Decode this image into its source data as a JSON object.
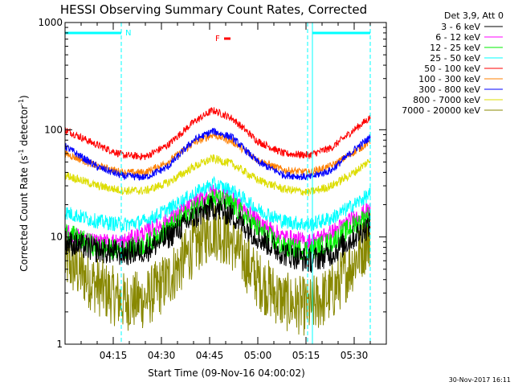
{
  "chart_data": {
    "type": "line",
    "title": "HESSI Observing Summary Count Rates, Corrected",
    "xlabel": "Start Time (09-Nov-16 04:00:02)",
    "ylabel_main": "Corrected Count Rate (s",
    "ylabel_sup1": "-1",
    "ylabel_mid": " detector",
    "ylabel_sup2": "-1",
    "ylabel_end": ")",
    "y_scale": "log",
    "ylim": [
      1,
      1000
    ],
    "xlim_minutes": [
      0,
      100
    ],
    "x_ticks": [
      {
        "minute": 15,
        "label": "04:15"
      },
      {
        "minute": 30,
        "label": "04:30"
      },
      {
        "minute": 45,
        "label": "04:45"
      },
      {
        "minute": 60,
        "label": "05:00"
      },
      {
        "minute": 75,
        "label": "05:15"
      },
      {
        "minute": 90,
        "label": "05:30"
      }
    ],
    "y_ticks": [
      {
        "value": 1,
        "label": "1"
      },
      {
        "value": 10,
        "label": "10"
      },
      {
        "value": 100,
        "label": "100"
      },
      {
        "value": 1000,
        "label": "1000"
      }
    ],
    "legend_header": "Det 3,9, Att 0",
    "series": [
      {
        "name": "3 - 6 keV",
        "color": "#000000",
        "x": [
          0,
          10,
          18,
          25,
          32,
          40,
          46,
          52,
          60,
          68,
          76,
          83,
          90,
          95
        ],
        "y": [
          9,
          7.5,
          7,
          7.5,
          10,
          15,
          19,
          16,
          10,
          7,
          6,
          7,
          10,
          13
        ],
        "noise": 0.12
      },
      {
        "name": "6 - 12 keV",
        "color": "#ff00ff",
        "x": [
          0,
          10,
          18,
          25,
          32,
          40,
          46,
          52,
          60,
          68,
          76,
          83,
          90,
          95
        ],
        "y": [
          11,
          9,
          9,
          11,
          14,
          20,
          26,
          22,
          14,
          10,
          9,
          11,
          15,
          18
        ],
        "noise": 0.08
      },
      {
        "name": "12 - 25 keV",
        "color": "#00ee00",
        "x": [
          0,
          10,
          18,
          25,
          32,
          40,
          46,
          52,
          60,
          68,
          76,
          83,
          90,
          95
        ],
        "y": [
          11,
          8,
          7.5,
          8.5,
          12,
          18,
          23,
          20,
          12,
          8,
          7.5,
          9,
          13,
          16
        ],
        "noise": 0.1
      },
      {
        "name": "25 - 50 keV",
        "color": "#00ffff",
        "x": [
          0,
          10,
          18,
          25,
          32,
          40,
          46,
          52,
          60,
          68,
          76,
          83,
          90,
          95
        ],
        "y": [
          17,
          14,
          13,
          14,
          18,
          25,
          31,
          27,
          18,
          14,
          13,
          15,
          20,
          25
        ],
        "noise": 0.07
      },
      {
        "name": "50 - 100 keV",
        "color": "#ff0000",
        "x": [
          0,
          10,
          18,
          25,
          32,
          40,
          46,
          52,
          60,
          68,
          76,
          83,
          90,
          95
        ],
        "y": [
          100,
          72,
          58,
          56,
          72,
          118,
          152,
          128,
          78,
          60,
          58,
          68,
          100,
          130
        ],
        "noise": 0.035
      },
      {
        "name": "100 - 300 keV",
        "color": "#ff8000",
        "x": [
          0,
          10,
          18,
          25,
          32,
          40,
          46,
          52,
          60,
          68,
          76,
          83,
          90,
          95
        ],
        "y": [
          60,
          46,
          40,
          40,
          50,
          75,
          90,
          78,
          52,
          42,
          40,
          46,
          62,
          78
        ],
        "noise": 0.035
      },
      {
        "name": "300 - 800 keV",
        "color": "#0000ff",
        "x": [
          0,
          10,
          18,
          25,
          32,
          40,
          46,
          52,
          60,
          68,
          76,
          83,
          90,
          95
        ],
        "y": [
          70,
          45,
          37,
          36,
          45,
          80,
          97,
          85,
          50,
          38,
          36,
          42,
          65,
          85
        ],
        "noise": 0.035
      },
      {
        "name": "800 - 7000 keV",
        "color": "#dddd00",
        "x": [
          0,
          10,
          18,
          25,
          32,
          40,
          46,
          52,
          60,
          68,
          76,
          83,
          90,
          95
        ],
        "y": [
          38,
          30,
          27,
          27,
          32,
          45,
          54,
          48,
          34,
          28,
          26,
          30,
          40,
          52
        ],
        "noise": 0.04
      },
      {
        "name": "7000 - 20000 keV",
        "color": "#888800",
        "x": [
          0,
          10,
          18,
          25,
          32,
          40,
          46,
          52,
          60,
          68,
          76,
          83,
          90,
          95
        ],
        "y": [
          6,
          3.5,
          2.5,
          2.6,
          4,
          8,
          12,
          9,
          4,
          2.5,
          2.2,
          3,
          6,
          10
        ],
        "noise": 0.28
      }
    ],
    "annotations": {
      "night_label": "N",
      "flare_label": "F",
      "night_intervals": [
        [
          0,
          17.5
        ],
        [
          77,
          95
        ]
      ],
      "flare_interval": [
        49.5,
        51.5
      ],
      "saa_lines_minutes": [
        0,
        17.5,
        75.5,
        77,
        95
      ]
    },
    "timestamp": "30-Nov-2017 16:11"
  }
}
